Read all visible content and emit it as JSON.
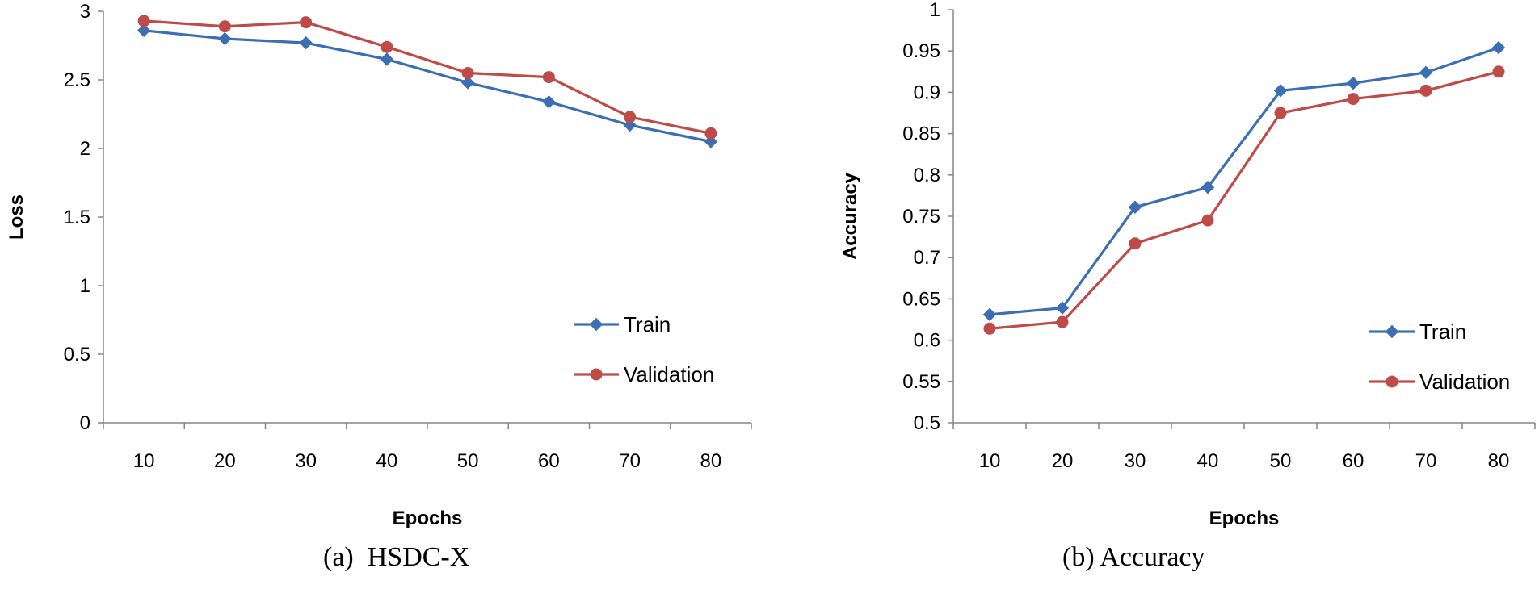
{
  "chart_data": [
    {
      "type": "line",
      "caption": "(a)  HSDC-X",
      "xlabel": "Epochs",
      "ylabel": "Loss",
      "categories": [
        "10",
        "20",
        "30",
        "40",
        "50",
        "60",
        "70",
        "80"
      ],
      "ylim": [
        0,
        3
      ],
      "yticks": [
        0,
        0.5,
        1,
        1.5,
        2,
        2.5,
        3
      ],
      "ytick_labels": [
        "0",
        "0.5",
        "1",
        "1.5",
        "2",
        "2.5",
        "3"
      ],
      "legend_position": "bottom-right",
      "series": [
        {
          "name": "Train",
          "color": "#3C6EB4",
          "marker": "diamond",
          "values": [
            2.86,
            2.8,
            2.77,
            2.65,
            2.48,
            2.34,
            2.17,
            2.05
          ]
        },
        {
          "name": "Validation",
          "color": "#BE4B48",
          "marker": "circle",
          "values": [
            2.93,
            2.89,
            2.92,
            2.74,
            2.55,
            2.52,
            2.23,
            2.11
          ]
        }
      ]
    },
    {
      "type": "line",
      "caption": "(b) Accuracy",
      "xlabel": "Epochs",
      "ylabel": "Accuracy",
      "categories": [
        "10",
        "20",
        "30",
        "40",
        "50",
        "60",
        "70",
        "80"
      ],
      "ylim": [
        0.5,
        1
      ],
      "yticks": [
        0.5,
        0.55,
        0.6,
        0.65,
        0.7,
        0.75,
        0.8,
        0.85,
        0.9,
        0.95,
        1
      ],
      "ytick_labels": [
        "0.5",
        "0.55",
        "0.6",
        "0.65",
        "0.7",
        "0.75",
        "0.8",
        "0.85",
        "0.9",
        "0.95",
        "1"
      ],
      "legend_position": "bottom-right",
      "series": [
        {
          "name": "Train",
          "color": "#3C6EB4",
          "marker": "diamond",
          "values": [
            0.631,
            0.639,
            0.761,
            0.785,
            0.902,
            0.911,
            0.924,
            0.954
          ]
        },
        {
          "name": "Validation",
          "color": "#BE4B48",
          "marker": "circle",
          "values": [
            0.614,
            0.622,
            0.717,
            0.745,
            0.875,
            0.892,
            0.902,
            0.925
          ]
        }
      ]
    }
  ]
}
